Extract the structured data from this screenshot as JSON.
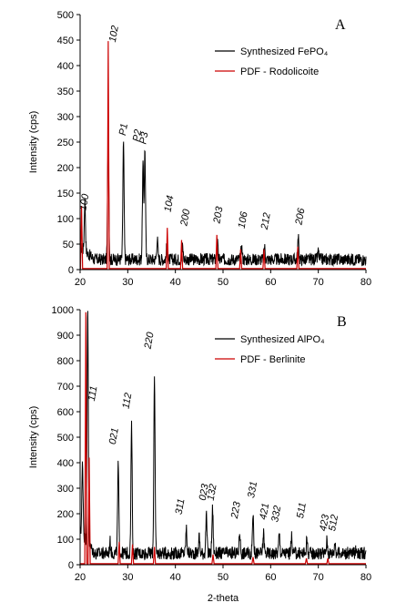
{
  "chart_data": [
    {
      "type": "line",
      "panel_label": "A",
      "xlabel": "",
      "ylabel": "Intensity (cps)",
      "xlim": [
        20,
        80
      ],
      "ylim": [
        0,
        500
      ],
      "x_ticks": [
        20,
        30,
        40,
        50,
        60,
        70,
        80
      ],
      "y_ticks": [
        0,
        50,
        100,
        150,
        200,
        250,
        300,
        350,
        400,
        450,
        500
      ],
      "legend_position": "top-right",
      "series": [
        {
          "name": "Synthesized FePO₄",
          "color": "#000000",
          "kind": "measured",
          "background": 20,
          "noise": 12,
          "peaks": [
            {
              "x": 21.0,
              "y": 120
            },
            {
              "x": 25.9,
              "y": 270
            },
            {
              "x": 29.1,
              "y": 248
            },
            {
              "x": 33.2,
              "y": 205
            },
            {
              "x": 33.6,
              "y": 235
            },
            {
              "x": 36.2,
              "y": 60
            },
            {
              "x": 38.2,
              "y": 45
            },
            {
              "x": 41.5,
              "y": 45
            },
            {
              "x": 48.8,
              "y": 55
            },
            {
              "x": 53.9,
              "y": 45
            },
            {
              "x": 58.7,
              "y": 45
            },
            {
              "x": 65.8,
              "y": 60
            },
            {
              "x": 70.0,
              "y": 35
            }
          ]
        },
        {
          "name": "PDF - Rodolicoite",
          "color": "#cc0000",
          "kind": "reference",
          "peaks": [
            {
              "x": 20.3,
              "y": 125
            },
            {
              "x": 25.9,
              "y": 448
            },
            {
              "x": 38.3,
              "y": 82
            },
            {
              "x": 41.3,
              "y": 58
            },
            {
              "x": 48.7,
              "y": 68
            },
            {
              "x": 53.7,
              "y": 40
            },
            {
              "x": 58.6,
              "y": 40
            },
            {
              "x": 65.7,
              "y": 45
            }
          ]
        }
      ],
      "annotations": [
        {
          "text": "100",
          "x": 21.2,
          "y": 115
        },
        {
          "text": "102",
          "x": 27.4,
          "y": 445
        },
        {
          "text": "P1",
          "x": 29.5,
          "y": 262
        },
        {
          "text": "P2",
          "x": 32.4,
          "y": 250
        },
        {
          "text": "P3",
          "x": 33.8,
          "y": 245
        },
        {
          "text": "104",
          "x": 39.0,
          "y": 112
        },
        {
          "text": "200",
          "x": 42.4,
          "y": 85
        },
        {
          "text": "203",
          "x": 49.3,
          "y": 90
        },
        {
          "text": "106",
          "x": 54.5,
          "y": 80
        },
        {
          "text": "212",
          "x": 59.3,
          "y": 78
        },
        {
          "text": "206",
          "x": 66.5,
          "y": 87
        }
      ]
    },
    {
      "type": "line",
      "panel_label": "B",
      "xlabel": "2-theta",
      "ylabel": "Intensity (cps)",
      "xlim": [
        20,
        80
      ],
      "ylim": [
        0,
        1000
      ],
      "x_ticks": [
        20,
        30,
        40,
        50,
        60,
        70,
        80
      ],
      "y_ticks": [
        0,
        100,
        200,
        300,
        400,
        500,
        600,
        700,
        800,
        900,
        1000
      ],
      "legend_position": "top-right",
      "series": [
        {
          "name": "Synthesized AlPO₄",
          "color": "#000000",
          "kind": "measured",
          "background": 45,
          "noise": 25,
          "peaks": [
            {
              "x": 20.5,
              "y": 320
            },
            {
              "x": 21.6,
              "y": 960
            },
            {
              "x": 26.3,
              "y": 90
            },
            {
              "x": 28.0,
              "y": 390
            },
            {
              "x": 30.8,
              "y": 545
            },
            {
              "x": 35.6,
              "y": 750
            },
            {
              "x": 42.3,
              "y": 140
            },
            {
              "x": 45.0,
              "y": 110
            },
            {
              "x": 46.5,
              "y": 190
            },
            {
              "x": 47.8,
              "y": 220
            },
            {
              "x": 53.5,
              "y": 130
            },
            {
              "x": 56.3,
              "y": 205
            },
            {
              "x": 58.5,
              "y": 125
            },
            {
              "x": 61.8,
              "y": 120
            },
            {
              "x": 64.4,
              "y": 110
            },
            {
              "x": 67.6,
              "y": 100
            },
            {
              "x": 71.8,
              "y": 95
            },
            {
              "x": 73.5,
              "y": 90
            },
            {
              "x": 78.0,
              "y": 70
            }
          ]
        },
        {
          "name": "PDF - Berlinite",
          "color": "#cc0000",
          "kind": "reference",
          "peaks": [
            {
              "x": 21.2,
              "y": 990
            },
            {
              "x": 21.9,
              "y": 420
            },
            {
              "x": 28.2,
              "y": 90
            },
            {
              "x": 31.0,
              "y": 80
            },
            {
              "x": 35.6,
              "y": 70
            },
            {
              "x": 47.9,
              "y": 40
            },
            {
              "x": 56.3,
              "y": 30
            },
            {
              "x": 67.5,
              "y": 25
            },
            {
              "x": 72.0,
              "y": 25
            }
          ]
        }
      ],
      "annotations": [
        {
          "text": "111",
          "x": 23.0,
          "y": 640
        },
        {
          "text": "021",
          "x": 27.4,
          "y": 470
        },
        {
          "text": "112",
          "x": 30.2,
          "y": 610
        },
        {
          "text": "220",
          "x": 34.8,
          "y": 845
        },
        {
          "text": "311",
          "x": 41.3,
          "y": 195
        },
        {
          "text": "023",
          "x": 46.3,
          "y": 250
        },
        {
          "text": "132",
          "x": 48.0,
          "y": 250
        },
        {
          "text": "223",
          "x": 53.0,
          "y": 180
        },
        {
          "text": "331",
          "x": 56.5,
          "y": 260
        },
        {
          "text": "421",
          "x": 59.0,
          "y": 175
        },
        {
          "text": "332",
          "x": 61.5,
          "y": 165
        },
        {
          "text": "511",
          "x": 66.8,
          "y": 180
        },
        {
          "text": "423",
          "x": 71.6,
          "y": 130
        },
        {
          "text": "512",
          "x": 73.5,
          "y": 130
        }
      ]
    }
  ]
}
